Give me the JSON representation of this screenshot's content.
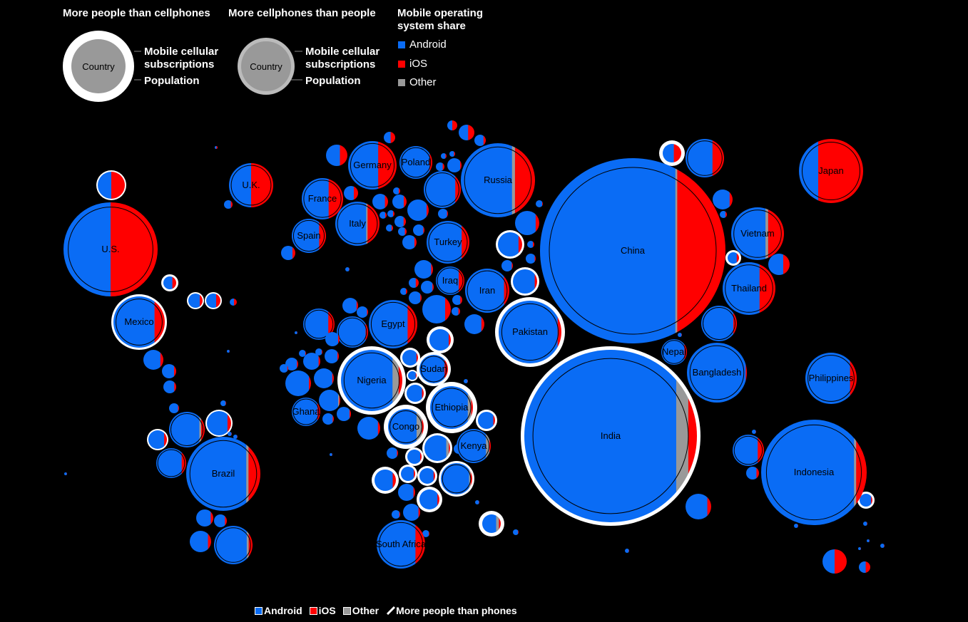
{
  "legend": {
    "group1_title": "More people than cellphones",
    "group2_title": "More cellphones than people",
    "sample_label": "Country",
    "subscriptions_label": "Mobile cellular subscriptions",
    "population_label": "Population",
    "os_title": "Mobile operating system share",
    "os_items": [
      {
        "label": "Android",
        "color": "#0a6cf5"
      },
      {
        "label": "iOS",
        "color": "#ff0000"
      },
      {
        "label": "Other",
        "color": "#999999"
      }
    ]
  },
  "bottom_legend": {
    "android": "Android",
    "ios": "iOS",
    "other": "Other",
    "more_people": "More people than phones"
  },
  "colors": {
    "android": "#0a6cf5",
    "ios": "#ff0000",
    "other": "#999999",
    "background": "#000000",
    "population_ring": "#ffffff"
  },
  "chart_data": {
    "type": "bubble-map",
    "encoding": "Bubble per country; fill split by mobile operating system share (Android / iOS / Other); white ring marks more people than phones",
    "series": [
      "Android",
      "iOS",
      "Other"
    ],
    "labeled_countries": [
      {
        "name": "U.S.",
        "android": 0.5,
        "ios": 0.5,
        "other": 0.0,
        "more_people_than_phones": false
      },
      {
        "name": "Mexico",
        "android": 0.8,
        "ios": 0.2,
        "other": 0.0,
        "more_people_than_phones": true
      },
      {
        "name": "Brazil",
        "android": 0.81,
        "ios": 0.16,
        "other": 0.03,
        "more_people_than_phones": false
      },
      {
        "name": "U.K.",
        "android": 0.5,
        "ios": 0.5,
        "other": 0.0,
        "more_people_than_phones": false
      },
      {
        "name": "France",
        "android": 0.65,
        "ios": 0.35,
        "other": 0.0,
        "more_people_than_phones": false
      },
      {
        "name": "Spain",
        "android": 0.8,
        "ios": 0.2,
        "other": 0.0,
        "more_people_than_phones": false
      },
      {
        "name": "Germany",
        "android": 0.62,
        "ios": 0.38,
        "other": 0.0,
        "more_people_than_phones": false
      },
      {
        "name": "Italy",
        "android": 0.7,
        "ios": 0.27,
        "other": 0.03,
        "more_people_than_phones": false
      },
      {
        "name": "Poland",
        "android": 0.92,
        "ios": 0.08,
        "other": 0.0,
        "more_people_than_phones": false
      },
      {
        "name": "Russia",
        "android": 0.69,
        "ios": 0.27,
        "other": 0.04,
        "more_people_than_phones": false
      },
      {
        "name": "Turkey",
        "android": 0.82,
        "ios": 0.18,
        "other": 0.0,
        "more_people_than_phones": false
      },
      {
        "name": "Iraq",
        "android": 0.8,
        "ios": 0.2,
        "other": 0.0,
        "more_people_than_phones": false
      },
      {
        "name": "Iran",
        "android": 0.88,
        "ios": 0.12,
        "other": 0.0,
        "more_people_than_phones": false
      },
      {
        "name": "Egypt",
        "android": 0.8,
        "ios": 0.2,
        "other": 0.0,
        "more_people_than_phones": false
      },
      {
        "name": "Nigeria",
        "android": 0.84,
        "ios": 0.06,
        "other": 0.1,
        "more_people_than_phones": true
      },
      {
        "name": "Ghana",
        "android": 0.9,
        "ios": 0.1,
        "other": 0.0,
        "more_people_than_phones": false
      },
      {
        "name": "Sudan",
        "android": 0.88,
        "ios": 0.12,
        "other": 0.0,
        "more_people_than_phones": true
      },
      {
        "name": "Ethiopia",
        "android": 0.88,
        "ios": 0.04,
        "other": 0.08,
        "more_people_than_phones": true
      },
      {
        "name": "Congo",
        "android": 0.8,
        "ios": 0.05,
        "other": 0.15,
        "more_people_than_phones": true
      },
      {
        "name": "Kenya",
        "android": 0.86,
        "ios": 0.04,
        "other": 0.1,
        "more_people_than_phones": false
      },
      {
        "name": "South Africa",
        "android": 0.8,
        "ios": 0.2,
        "other": 0.0,
        "more_people_than_phones": false
      },
      {
        "name": "Pakistan",
        "android": 0.94,
        "ios": 0.06,
        "other": 0.0,
        "more_people_than_phones": true
      },
      {
        "name": "China",
        "android": 0.73,
        "ios": 0.26,
        "other": 0.01,
        "more_people_than_phones": false
      },
      {
        "name": "India",
        "android": 0.88,
        "ios": 0.05,
        "other": 0.07,
        "more_people_than_phones": true
      },
      {
        "name": "Nepal",
        "android": 0.9,
        "ios": 0.1,
        "other": 0.0,
        "more_people_than_phones": false
      },
      {
        "name": "Bangladesh",
        "android": 0.98,
        "ios": 0.02,
        "other": 0.0,
        "more_people_than_phones": false
      },
      {
        "name": "Japan",
        "android": 0.3,
        "ios": 0.7,
        "other": 0.0,
        "more_people_than_phones": false
      },
      {
        "name": "Vietnam",
        "android": 0.65,
        "ios": 0.3,
        "other": 0.05,
        "more_people_than_phones": false
      },
      {
        "name": "Thailand",
        "android": 0.7,
        "ios": 0.3,
        "other": 0.0,
        "more_people_than_phones": false
      },
      {
        "name": "Philippines",
        "android": 0.87,
        "ios": 0.13,
        "other": 0.0,
        "more_people_than_phones": false
      },
      {
        "name": "Indonesia",
        "android": 0.88,
        "ios": 0.1,
        "other": 0.02,
        "more_people_than_phones": false
      }
    ]
  }
}
